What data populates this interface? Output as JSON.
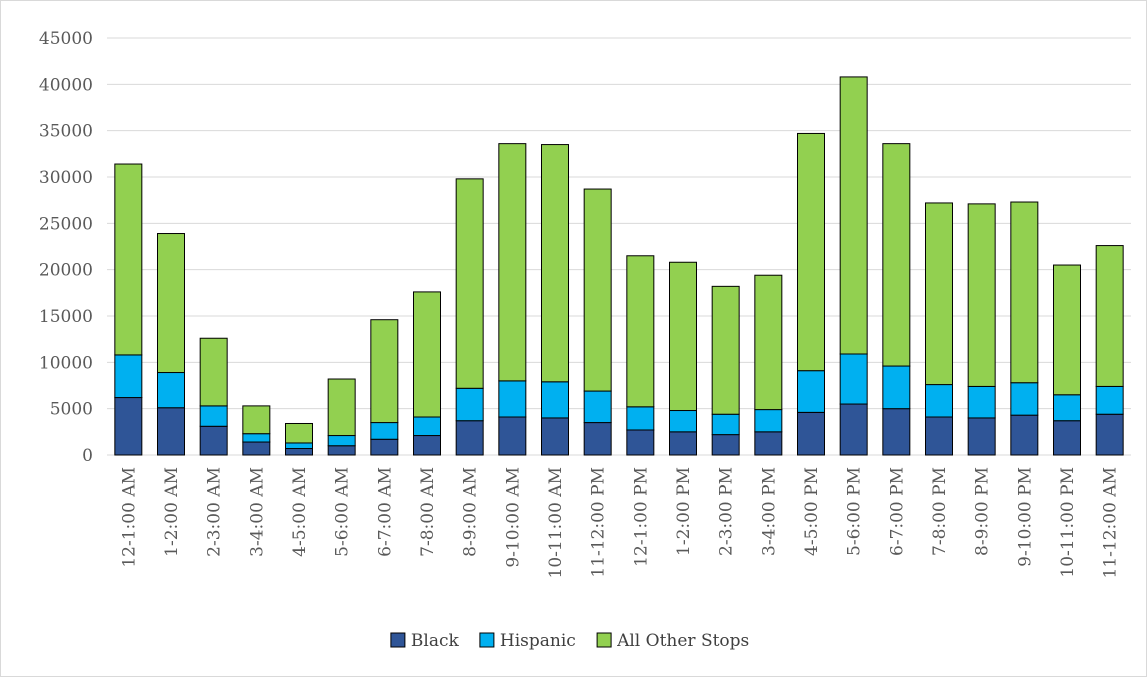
{
  "chart_data": {
    "type": "bar",
    "stacked": true,
    "title": "",
    "xlabel": "",
    "ylabel": "",
    "ylim": [
      0,
      45000
    ],
    "yticks": [
      0,
      5000,
      10000,
      15000,
      20000,
      25000,
      30000,
      35000,
      40000,
      45000
    ],
    "grid": true,
    "legend_position": "bottom",
    "categories": [
      "12-1:00 AM",
      "1-2:00 AM",
      "2-3:00 AM",
      "3-4:00 AM",
      "4-5:00 AM",
      "5-6:00 AM",
      "6-7:00 AM",
      "7-8:00 AM",
      "8-9:00 AM",
      "9-10:00 AM",
      "10-11:00 AM",
      "11-12:00 PM",
      "12-1:00 PM",
      "1-2:00 PM",
      "2-3:00 PM",
      "3-4:00 PM",
      "4-5:00 PM",
      "5-6:00 PM",
      "6-7:00 PM",
      "7-8:00 PM",
      "8-9:00 PM",
      "9-10:00 PM",
      "10-11:00 PM",
      "11-12:00 AM"
    ],
    "series": [
      {
        "name": "Black",
        "color": "#2f5597",
        "values": [
          6200,
          5100,
          3100,
          1400,
          700,
          1000,
          1700,
          2100,
          3700,
          4100,
          4000,
          3500,
          2700,
          2500,
          2200,
          2500,
          4600,
          5500,
          5000,
          4100,
          4000,
          4300,
          3700,
          4400
        ]
      },
      {
        "name": "Hispanic",
        "color": "#00b0f0",
        "values": [
          4600,
          3800,
          2200,
          900,
          600,
          1100,
          1800,
          2000,
          3500,
          3900,
          3900,
          3400,
          2500,
          2300,
          2200,
          2400,
          4500,
          5400,
          4600,
          3500,
          3400,
          3500,
          2800,
          3000
        ]
      },
      {
        "name": "All Other Stops",
        "color": "#92d050",
        "values": [
          20600,
          15000,
          7300,
          3000,
          2100,
          6100,
          11100,
          13500,
          22600,
          25600,
          25600,
          21800,
          16300,
          16000,
          13800,
          14500,
          25600,
          29900,
          24000,
          19600,
          19700,
          19500,
          14000,
          15200
        ]
      }
    ]
  }
}
